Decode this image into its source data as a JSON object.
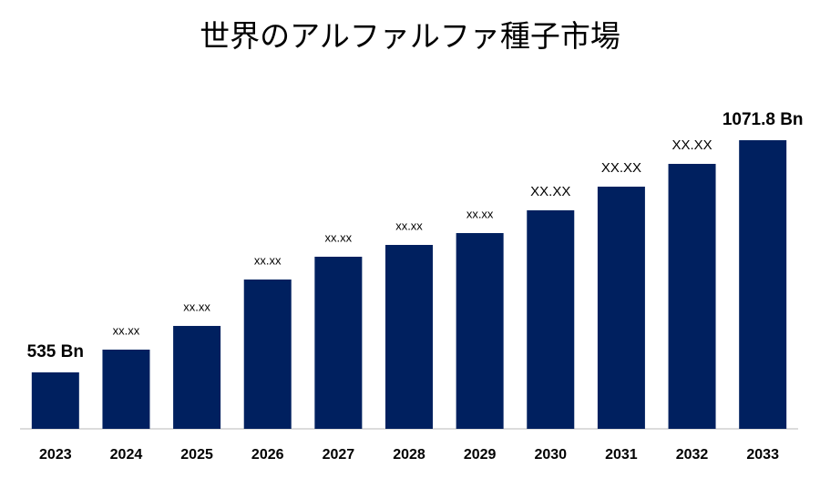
{
  "chart_data": {
    "type": "bar",
    "title": "世界のアルファルファ種子市場",
    "categories": [
      "2023",
      "2024",
      "2025",
      "2026",
      "2027",
      "2028",
      "2029",
      "2030",
      "2031",
      "2032",
      "2033"
    ],
    "values": [
      535,
      587.6,
      642.4,
      749.7,
      802.4,
      829.7,
      857.1,
      909.7,
      964.4,
      1017.1,
      1071.8
    ],
    "value_labels": [
      "535 Bn",
      "xx.xx",
      "xx.xx",
      "xx.xx",
      "xx.xx",
      "xx.xx",
      "xx.xx",
      "XX.XX",
      "XX.XX",
      "XX.XX",
      "1071.8 Bn"
    ],
    "color": "#00205f"
  }
}
